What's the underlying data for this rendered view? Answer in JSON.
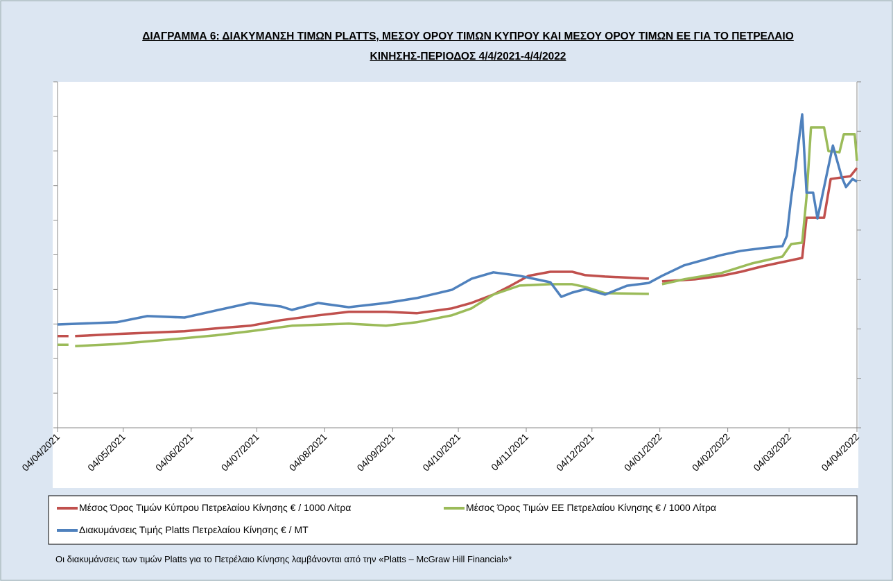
{
  "chart_data": {
    "type": "line",
    "title": "ΔΙΑΓΡΑΜΜΑ 6: ΔΙΑΚΥΜΑΝΣΗ ΤΙΜΩΝ PLATTS, ΜΕΣΟΥ ΟΡΟΥ ΤΙΜΩΝ ΚΥΠΡΟΥ ΚΑΙ ΜΕΣΟΥ ΟΡΟΥ ΤΙΜΩΝ ΕΕ ΓΙΑ ΤΟ ΠΕΤΡΕΛΑΙΟ ΚΙΝΗΣΗΣ-ΠΕΡΙΟΔΟΣ 4/4/2021-4/4/2022",
    "footnote": "Οι διακυμάνσεις των τιμών Platts για το Πετρέλαιο Κίνησης λαμβάνονται από την «Platts – McGraw Hill Financial»*",
    "xlim": [
      "2021-04-04",
      "2022-04-04"
    ],
    "xticks": [
      {
        "value": "2021-04-04",
        "label": "04/04/2021"
      },
      {
        "value": "2021-05-04",
        "label": "04/05/2021"
      },
      {
        "value": "2021-06-04",
        "label": "04/06/2021"
      },
      {
        "value": "2021-07-04",
        "label": "04/07/2021"
      },
      {
        "value": "2021-08-04",
        "label": "04/08/2021"
      },
      {
        "value": "2021-09-04",
        "label": "04/09/2021"
      },
      {
        "value": "2021-10-04",
        "label": "04/10/2021"
      },
      {
        "value": "2021-11-04",
        "label": "04/11/2021"
      },
      {
        "value": "2021-12-04",
        "label": "04/12/2021"
      },
      {
        "value": "2022-01-04",
        "label": "04/01/2022"
      },
      {
        "value": "2022-02-04",
        "label": "04/02/2022"
      },
      {
        "value": "2022-03-04",
        "label": "04/03/2022"
      },
      {
        "value": "2022-04-04",
        "label": "04/04/2022"
      }
    ],
    "ylim": [
      0,
      1000
    ],
    "yticks": [
      0,
      100,
      200,
      300,
      400,
      500,
      600,
      700,
      800,
      900,
      1000
    ],
    "y2lim": [
      0,
      1400
    ],
    "y2ticks": [
      0,
      200,
      400,
      600,
      800,
      1000,
      1200,
      1400
    ],
    "series": [
      {
        "name": "Μέσος Όρος Τιμών Κύπρου Πετρελαίου Κίνησης  € / 1000 Λίτρα",
        "color": "#c0504d",
        "x": [
          "2021-04-04",
          "2021-04-09",
          "2021-04-10",
          "2021-04-12",
          "2021-05-01",
          "2021-06-01",
          "2021-06-15",
          "2021-07-01",
          "2021-07-15",
          "2021-08-01",
          "2021-08-15",
          "2021-09-01",
          "2021-09-15",
          "2021-10-01",
          "2021-10-10",
          "2021-10-20",
          "2021-10-28",
          "2021-11-05",
          "2021-11-15",
          "2021-11-25",
          "2021-12-01",
          "2021-12-10",
          "2021-12-30",
          "2021-12-31",
          "2022-01-05",
          "2022-01-20",
          "2022-02-01",
          "2022-02-10",
          "2022-02-20",
          "2022-03-01",
          "2022-03-10",
          "2022-03-12",
          "2022-03-20",
          "2022-03-23",
          "2022-04-01",
          "2022-04-04"
        ],
        "values": [
          265,
          265,
          null,
          265,
          271,
          279,
          287,
          295,
          311,
          325,
          335,
          335,
          331,
          345,
          361,
          385,
          411,
          439,
          451,
          451,
          441,
          437,
          431,
          null,
          423,
          429,
          439,
          451,
          467,
          479,
          491,
          607,
          607,
          719,
          727,
          751
        ]
      },
      {
        "name": "Μέσος Όρος Τιμών ΕΕ Πετρελαίου Κίνησης  € / 1000 Λίτρα",
        "color": "#9bbb59",
        "x": [
          "2021-04-04",
          "2021-04-09",
          "2021-04-10",
          "2021-04-12",
          "2021-05-01",
          "2021-06-01",
          "2021-06-15",
          "2021-07-01",
          "2021-07-20",
          "2021-08-15",
          "2021-09-01",
          "2021-09-15",
          "2021-10-01",
          "2021-10-10",
          "2021-10-20",
          "2021-11-01",
          "2021-11-15",
          "2021-11-25",
          "2021-12-01",
          "2021-12-10",
          "2021-12-30",
          "2021-12-31",
          "2022-01-05",
          "2022-01-15",
          "2022-02-01",
          "2022-02-15",
          "2022-03-01",
          "2022-03-05",
          "2022-03-10",
          "2022-03-12",
          "2022-03-14",
          "2022-03-20",
          "2022-03-22",
          "2022-03-27",
          "2022-03-29",
          "2022-04-03",
          "2022-04-04"
        ],
        "values": [
          240,
          240,
          null,
          236,
          242,
          259,
          267,
          279,
          295,
          301,
          295,
          305,
          325,
          345,
          385,
          411,
          415,
          415,
          407,
          389,
          387,
          null,
          415,
          429,
          447,
          475,
          495,
          531,
          535,
          667,
          868,
          868,
          800,
          796,
          848,
          848,
          772
        ]
      },
      {
        "name": "Διακυμάνσεις Τιμής Platts Πετρελαίου Κίνησης € / MT",
        "color": "#4f81bd",
        "axis": "y2",
        "x": [
          "2021-04-04",
          "2021-05-01",
          "2021-05-15",
          "2021-06-01",
          "2021-06-15",
          "2021-07-01",
          "2021-07-15",
          "2021-07-20",
          "2021-08-01",
          "2021-08-15",
          "2021-09-01",
          "2021-09-15",
          "2021-10-01",
          "2021-10-10",
          "2021-10-20",
          "2021-11-01",
          "2021-11-15",
          "2021-11-20",
          "2021-11-25",
          "2021-12-01",
          "2021-12-10",
          "2021-12-20",
          "2021-12-30",
          "2022-01-05",
          "2022-01-15",
          "2022-02-01",
          "2022-02-10",
          "2022-02-20",
          "2022-03-01",
          "2022-03-03",
          "2022-03-05",
          "2022-03-07",
          "2022-03-10",
          "2022-03-12",
          "2022-03-15",
          "2022-03-17",
          "2022-03-22",
          "2022-03-24",
          "2022-03-28",
          "2022-03-30",
          "2022-04-02",
          "2022-04-04"
        ],
        "values": [
          418,
          427,
          452,
          446,
          474,
          505,
          491,
          477,
          505,
          488,
          505,
          525,
          558,
          603,
          629,
          615,
          589,
          530,
          547,
          561,
          539,
          575,
          586,
          615,
          657,
          699,
          716,
          727,
          735,
          777,
          932,
          1058,
          1268,
          951,
          951,
          847,
          1058,
          1142,
          1016,
          974,
          1007,
          996
        ]
      }
    ]
  }
}
